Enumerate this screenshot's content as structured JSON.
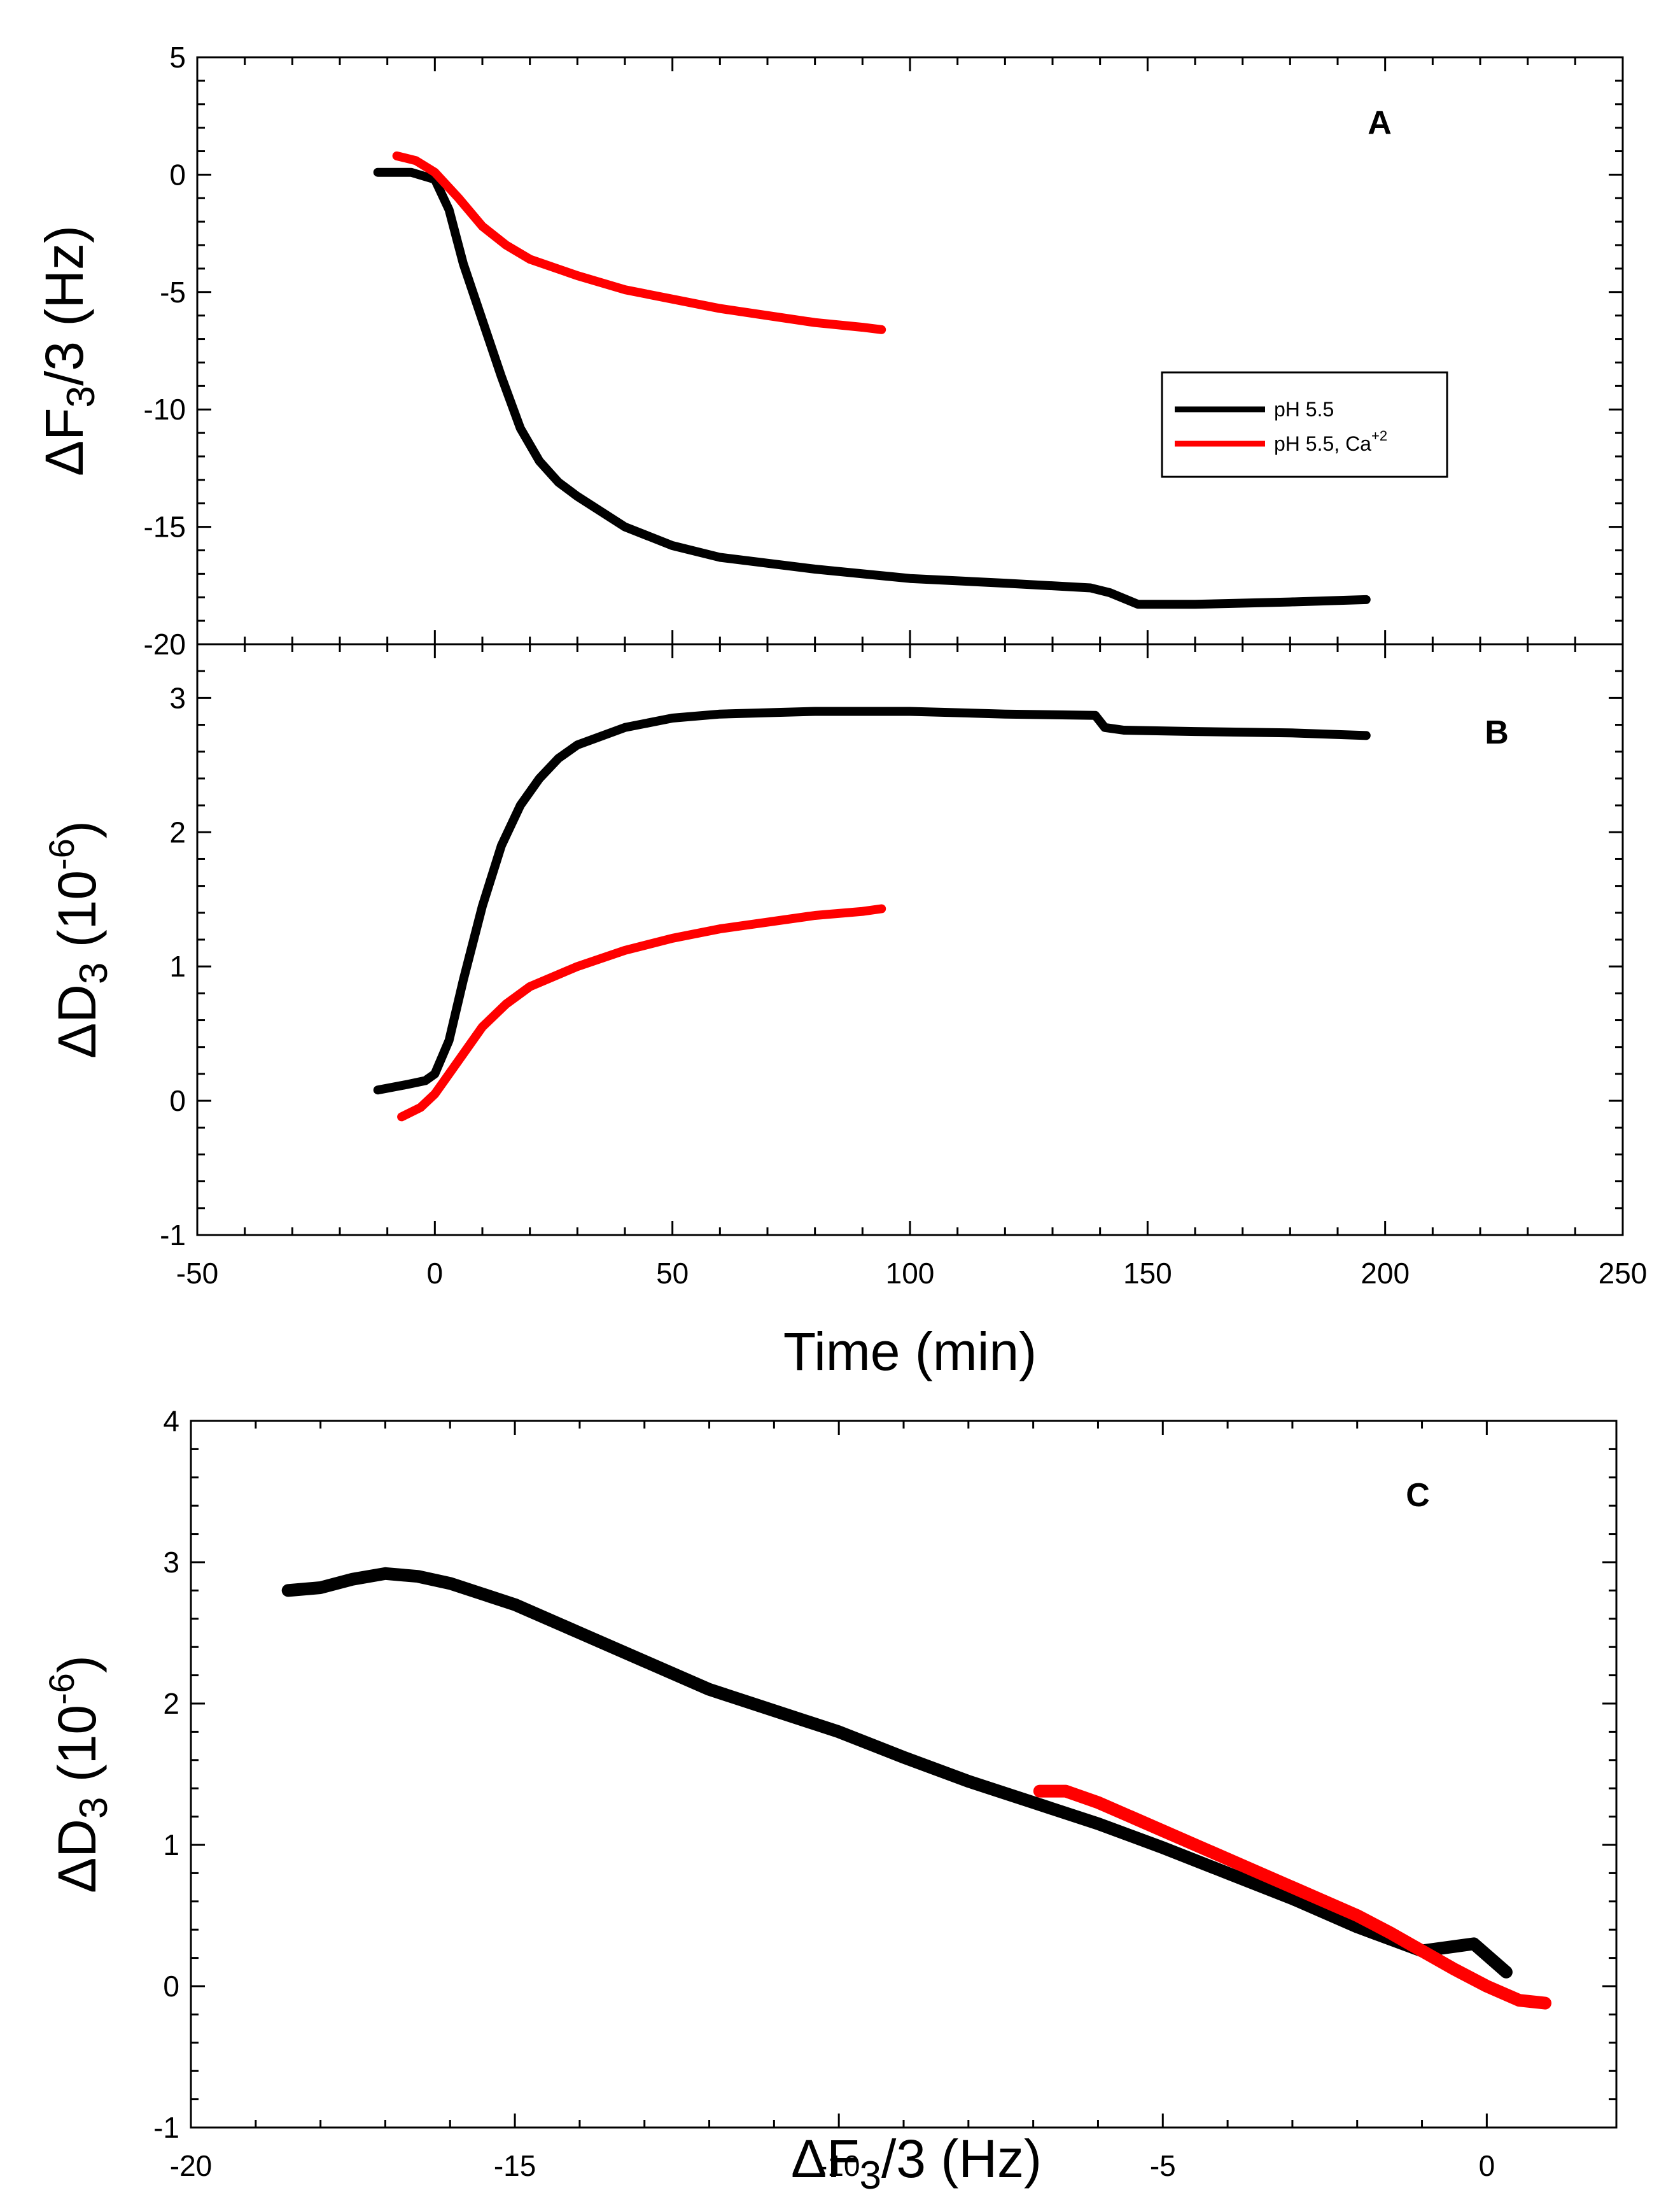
{
  "colors": {
    "black_series": "#000000",
    "red_series": "#ff0000",
    "axis": "#000000",
    "background": "#ffffff"
  },
  "legend": {
    "entries": [
      {
        "label": "pH 5.5",
        "color": "#000000"
      },
      {
        "label_main": "pH 5.5, Ca",
        "label_sup": "+2",
        "color": "#ff0000"
      }
    ]
  },
  "chart_data": [
    {
      "panel": "A",
      "type": "line",
      "ylabel": {
        "delta": "Δ",
        "main": "F",
        "sub": "3",
        "rest": "/3 (Hz)"
      },
      "xlim": [
        -50,
        250
      ],
      "ylim": [
        -20,
        5
      ],
      "xticks": [
        -50,
        0,
        50,
        100,
        150,
        200,
        250
      ],
      "yticks": [
        -20,
        -15,
        -10,
        -5,
        0,
        5
      ],
      "ytick_labels": [
        "-20",
        "-15",
        "-10",
        "-5",
        "0",
        "5"
      ],
      "series": [
        {
          "name": "pH 5.5",
          "color": "#000000",
          "x": [
            -12,
            -5,
            0,
            3,
            6,
            10,
            14,
            18,
            22,
            26,
            30,
            40,
            50,
            60,
            80,
            100,
            120,
            138,
            142,
            148,
            160,
            180,
            196
          ],
          "y": [
            0.1,
            0.1,
            -0.2,
            -1.5,
            -3.8,
            -6.2,
            -8.6,
            -10.8,
            -12.2,
            -13.1,
            -13.7,
            -15.0,
            -15.8,
            -16.3,
            -16.8,
            -17.2,
            -17.4,
            -17.6,
            -17.8,
            -18.3,
            -18.3,
            -18.2,
            -18.1
          ]
        },
        {
          "name": "pH 5.5, Ca+2",
          "color": "#ff0000",
          "x": [
            -8,
            -4,
            0,
            5,
            10,
            15,
            20,
            30,
            40,
            50,
            60,
            70,
            80,
            90,
            94
          ],
          "y": [
            0.8,
            0.6,
            0.1,
            -1.0,
            -2.2,
            -3.0,
            -3.6,
            -4.3,
            -4.9,
            -5.3,
            -5.7,
            -6.0,
            -6.3,
            -6.5,
            -6.6
          ]
        }
      ]
    },
    {
      "panel": "B",
      "type": "line",
      "ylabel": {
        "delta": "Δ",
        "main": "D",
        "sub": "3",
        "rest": " (10",
        "sup": "-6",
        "close": ")"
      },
      "xlabel": "Time (min)",
      "xlim": [
        -50,
        250
      ],
      "ylim": [
        -1,
        3.4
      ],
      "xticks": [
        -50,
        0,
        50,
        100,
        150,
        200,
        250
      ],
      "xtick_labels": [
        "-50",
        "0",
        "50",
        "100",
        "150",
        "200",
        "250"
      ],
      "yticks": [
        -1,
        0,
        1,
        2,
        3
      ],
      "ytick_labels": [
        "-1",
        "0",
        "1",
        "2",
        "3"
      ],
      "series": [
        {
          "name": "pH 5.5",
          "color": "#000000",
          "x": [
            -12,
            -6,
            -2,
            0,
            3,
            6,
            10,
            14,
            18,
            22,
            26,
            30,
            40,
            50,
            60,
            80,
            100,
            120,
            139,
            141,
            145,
            160,
            180,
            196
          ],
          "y": [
            0.08,
            0.12,
            0.15,
            0.2,
            0.45,
            0.9,
            1.45,
            1.9,
            2.2,
            2.4,
            2.55,
            2.65,
            2.78,
            2.85,
            2.88,
            2.9,
            2.9,
            2.88,
            2.87,
            2.78,
            2.76,
            2.75,
            2.74,
            2.72
          ]
        },
        {
          "name": "pH 5.5, Ca+2",
          "color": "#ff0000",
          "x": [
            -7,
            -3,
            0,
            3,
            6,
            10,
            15,
            20,
            30,
            40,
            50,
            60,
            70,
            80,
            90,
            94
          ],
          "y": [
            -0.12,
            -0.05,
            0.05,
            0.2,
            0.35,
            0.55,
            0.72,
            0.85,
            1.0,
            1.12,
            1.21,
            1.28,
            1.33,
            1.38,
            1.41,
            1.43
          ]
        }
      ]
    },
    {
      "panel": "C",
      "type": "scatter",
      "ylabel": {
        "delta": "Δ",
        "main": "D",
        "sub": "3",
        "rest": " (10",
        "sup": "-6",
        "close": ")"
      },
      "xlabel": {
        "delta": "Δ",
        "main": "F",
        "sub": "3",
        "rest": "/3 (Hz)"
      },
      "xlim": [
        -20,
        2
      ],
      "ylim": [
        -1,
        4
      ],
      "xticks": [
        -20,
        -15,
        -10,
        -5,
        0
      ],
      "xtick_labels": [
        "-20",
        "-15",
        "-10",
        "-5",
        "0"
      ],
      "yticks": [
        -1,
        0,
        1,
        2,
        3,
        4
      ],
      "ytick_labels": [
        "-1",
        "0",
        "1",
        "2",
        "3",
        "4"
      ],
      "series": [
        {
          "name": "pH 5.5",
          "color": "#000000",
          "x": [
            -18.5,
            -18.0,
            -17.5,
            -17.0,
            -16.5,
            -16.0,
            -15.0,
            -14.0,
            -13.0,
            -12.0,
            -11.0,
            -10.0,
            -9.0,
            -8.0,
            -7.0,
            -6.0,
            -5.0,
            -4.0,
            -3.0,
            -2.0,
            -1.0,
            -0.2,
            0.3
          ],
          "y": [
            2.8,
            2.82,
            2.88,
            2.92,
            2.9,
            2.85,
            2.7,
            2.5,
            2.3,
            2.1,
            1.95,
            1.8,
            1.62,
            1.45,
            1.3,
            1.15,
            0.98,
            0.8,
            0.62,
            0.42,
            0.25,
            0.3,
            0.1
          ]
        },
        {
          "name": "pH 5.5, Ca+2",
          "color": "#ff0000",
          "x": [
            -6.9,
            -6.5,
            -6.0,
            -5.5,
            -5.0,
            -4.5,
            -4.0,
            -3.5,
            -3.0,
            -2.5,
            -2.0,
            -1.5,
            -1.0,
            -0.5,
            0.0,
            0.5,
            0.9
          ],
          "y": [
            1.38,
            1.38,
            1.3,
            1.2,
            1.1,
            1.0,
            0.9,
            0.8,
            0.7,
            0.6,
            0.5,
            0.38,
            0.25,
            0.12,
            0.0,
            -0.1,
            -0.12
          ]
        }
      ]
    }
  ]
}
